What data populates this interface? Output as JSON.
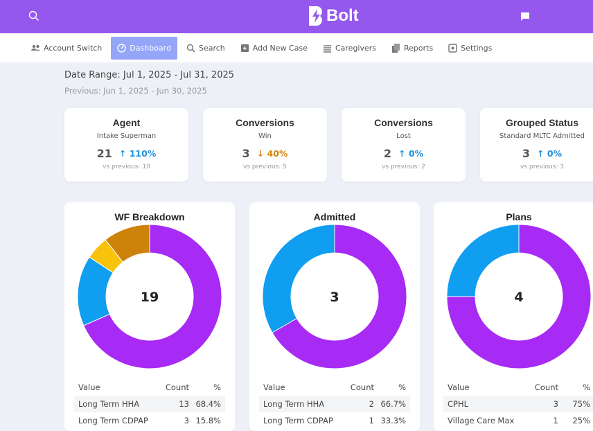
{
  "header": {
    "brand": "Bolt",
    "icons": [
      "search-icon",
      "chat-icon"
    ]
  },
  "nav": [
    {
      "label": "Account Switch",
      "icon": "users-icon"
    },
    {
      "label": "Dashboard",
      "icon": "dashboard-icon",
      "active": true
    },
    {
      "label": "Search",
      "icon": "search-icon"
    },
    {
      "label": "Add New Case",
      "icon": "add-file-icon"
    },
    {
      "label": "Caregivers",
      "icon": "list-icon"
    },
    {
      "label": "Reports",
      "icon": "documents-icon"
    },
    {
      "label": "Settings",
      "icon": "gear-icon"
    }
  ],
  "date_range": "Date Range: Jul 1, 2025 - Jul 31, 2025",
  "previous_range": "Previous: Jun 1, 2025 - Jun 30, 2025",
  "cards": [
    {
      "title": "Agent",
      "subtitle": "Intake Superman",
      "value": "21",
      "arrow": "↑",
      "change": "110%",
      "dir": "up",
      "previous": "vs previous: 10"
    },
    {
      "title": "Conversions",
      "subtitle": "Win",
      "value": "3",
      "arrow": "↓",
      "change": "40%",
      "dir": "down",
      "previous": "vs previous: 5"
    },
    {
      "title": "Conversions",
      "subtitle": "Lost",
      "value": "2",
      "arrow": "↑",
      "change": "0%",
      "dir": "up",
      "previous": "vs previous: 2"
    },
    {
      "title": "Grouped Status",
      "subtitle": "Standard MLTC Admitted",
      "value": "3",
      "arrow": "↑",
      "change": "0%",
      "dir": "up",
      "previous": "vs previous: 3"
    }
  ],
  "colors": {
    "purple": "#a72af5",
    "blue": "#0f9ef0",
    "yellow": "#f9c30c",
    "orange": "#cd820a",
    "header": "#9558ec"
  },
  "table_headers": {
    "value": "Value",
    "count": "Count",
    "pct": "%"
  },
  "chart_data": [
    {
      "type": "pie",
      "title": "WF Breakdown",
      "total": "19",
      "values": [
        13,
        3,
        1,
        2
      ],
      "colors": [
        "#a72af5",
        "#0f9ef0",
        "#f9c30c",
        "#cd820a"
      ],
      "rows": [
        {
          "value": "Long Term HHA",
          "count": "13",
          "pct": "68.4%"
        },
        {
          "value": "Long Term CDPAP",
          "count": "3",
          "pct": "15.8%"
        }
      ]
    },
    {
      "type": "pie",
      "title": "Admitted",
      "total": "3",
      "values": [
        2,
        1
      ],
      "colors": [
        "#a72af5",
        "#0f9ef0"
      ],
      "rows": [
        {
          "value": "Long Term HHA",
          "count": "2",
          "pct": "66.7%"
        },
        {
          "value": "Long Term CDPAP",
          "count": "1",
          "pct": "33.3%"
        }
      ]
    },
    {
      "type": "pie",
      "title": "Plans",
      "total": "4",
      "values": [
        3,
        1
      ],
      "colors": [
        "#a72af5",
        "#0f9ef0"
      ],
      "rows": [
        {
          "value": "CPHL",
          "count": "3",
          "pct": "75%"
        },
        {
          "value": "Village Care Max",
          "count": "1",
          "pct": "25%"
        }
      ]
    }
  ]
}
